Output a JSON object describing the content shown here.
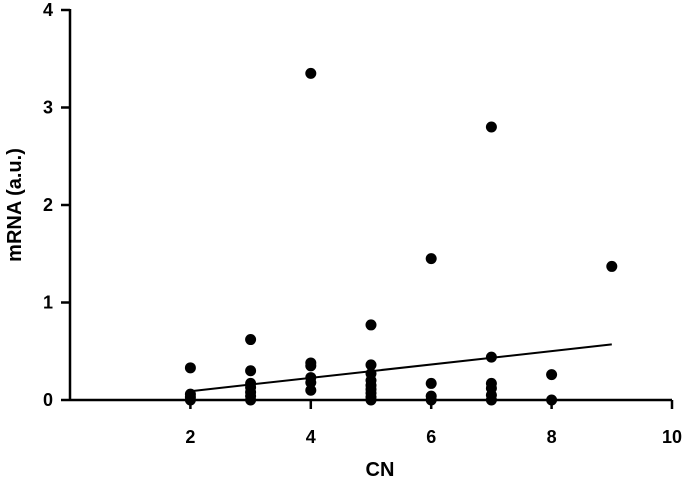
{
  "chart_data": {
    "type": "scatter",
    "title": "",
    "xlabel": "CN",
    "ylabel": "mRNA (a.u.)",
    "xlim": [
      0,
      10
    ],
    "ylim": [
      0,
      4
    ],
    "x_ticks": [
      2,
      4,
      6,
      8,
      10
    ],
    "y_ticks": [
      0,
      1,
      2,
      3,
      4
    ],
    "grid": false,
    "points": [
      {
        "x": 2,
        "y": 0.33
      },
      {
        "x": 2,
        "y": 0.06
      },
      {
        "x": 2,
        "y": 0.03
      },
      {
        "x": 2,
        "y": 0.0
      },
      {
        "x": 3,
        "y": 0.62
      },
      {
        "x": 3,
        "y": 0.3
      },
      {
        "x": 3,
        "y": 0.17
      },
      {
        "x": 3,
        "y": 0.13
      },
      {
        "x": 3,
        "y": 0.08
      },
      {
        "x": 3,
        "y": 0.04
      },
      {
        "x": 3,
        "y": 0.0
      },
      {
        "x": 4,
        "y": 3.35
      },
      {
        "x": 4,
        "y": 0.38
      },
      {
        "x": 4,
        "y": 0.35
      },
      {
        "x": 4,
        "y": 0.23
      },
      {
        "x": 4,
        "y": 0.18
      },
      {
        "x": 4,
        "y": 0.1
      },
      {
        "x": 5,
        "y": 0.77
      },
      {
        "x": 5,
        "y": 0.36
      },
      {
        "x": 5,
        "y": 0.27
      },
      {
        "x": 5,
        "y": 0.2
      },
      {
        "x": 5,
        "y": 0.15
      },
      {
        "x": 5,
        "y": 0.11
      },
      {
        "x": 5,
        "y": 0.07
      },
      {
        "x": 5,
        "y": 0.03
      },
      {
        "x": 5,
        "y": 0.0
      },
      {
        "x": 6,
        "y": 1.45
      },
      {
        "x": 6,
        "y": 0.17
      },
      {
        "x": 6,
        "y": 0.04
      },
      {
        "x": 6,
        "y": 0.0
      },
      {
        "x": 7,
        "y": 2.8
      },
      {
        "x": 7,
        "y": 0.44
      },
      {
        "x": 7,
        "y": 0.17
      },
      {
        "x": 7,
        "y": 0.12
      },
      {
        "x": 7,
        "y": 0.05
      },
      {
        "x": 7,
        "y": 0.0
      },
      {
        "x": 8,
        "y": 0.26
      },
      {
        "x": 8,
        "y": 0.0
      },
      {
        "x": 9,
        "y": 1.37
      }
    ],
    "fit_line": {
      "x": [
        2,
        9
      ],
      "y": [
        0.09,
        0.57
      ]
    }
  }
}
